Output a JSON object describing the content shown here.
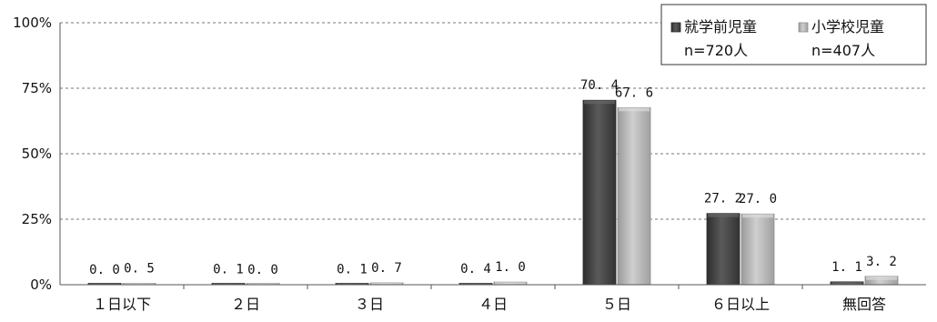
{
  "chart_data": {
    "type": "bar",
    "categories": [
      "１日以下",
      "２日",
      "３日",
      "４日",
      "５日",
      "６日以上",
      "無回答"
    ],
    "series": [
      {
        "name": "就学前児童",
        "n_label": "n=720人",
        "color": "#4a4a4a",
        "values": [
          0.0,
          0.1,
          0.1,
          0.4,
          70.4,
          27.2,
          1.1
        ],
        "labels": [
          "0. 0",
          "0. 1",
          "0. 1",
          "0. 4",
          "70. 4",
          "27. 2",
          "1. 1"
        ]
      },
      {
        "name": "小学校児童",
        "n_label": "n=407人",
        "color": "#b5b5b5",
        "values": [
          0.5,
          0.0,
          0.7,
          1.0,
          67.6,
          27.0,
          3.2
        ],
        "labels": [
          "0. 5",
          "0. 0",
          "0. 7",
          "1. 0",
          "67. 6",
          "27. 0",
          "3. 2"
        ]
      }
    ],
    "ylim": [
      0,
      100
    ],
    "yticks": [
      0,
      25,
      50,
      75,
      100
    ],
    "ytick_labels": [
      "0%",
      "25%",
      "50%",
      "75%",
      "100%"
    ],
    "grid": true,
    "legend_position": "top-right"
  }
}
